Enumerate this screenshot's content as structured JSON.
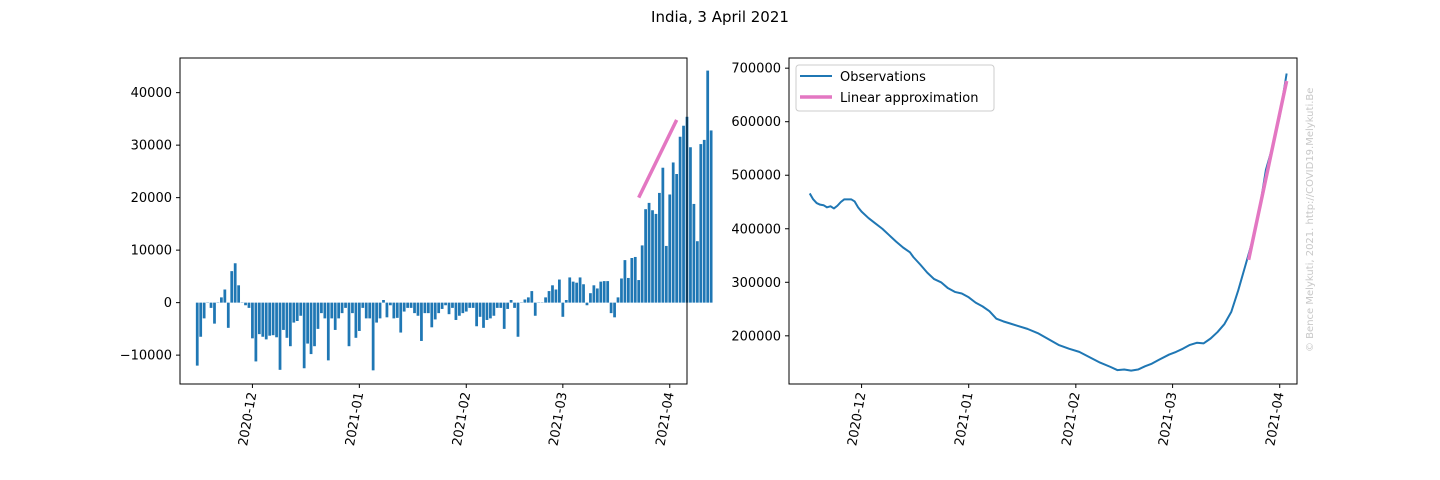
{
  "figure": {
    "title": "India, 3 April 2021",
    "watermark": "© Bence Melykuti, 2021. http://COVID19.Melykuti.Be"
  },
  "colors": {
    "bars": "#1f77b4",
    "observations": "#1f77b4",
    "linear_approximation": "#e377c2",
    "watermark": "#c8c8c8"
  },
  "chart_data": [
    {
      "type": "bar",
      "x_type": "date",
      "x_ticks": [
        "2020-12",
        "2021-01",
        "2021-02",
        "2021-03",
        "2021-04"
      ],
      "x_tick_dates": [
        "2020-12-01",
        "2021-01-01",
        "2021-02-01",
        "2021-03-01",
        "2021-04-01"
      ],
      "xlim": [
        "2020-11-10",
        "2021-04-06"
      ],
      "ylim": [
        -15500,
        46600
      ],
      "y_ticks": [
        -10000,
        0,
        10000,
        20000,
        30000,
        40000
      ],
      "y_tick_labels": [
        "−10000",
        "0",
        "10000",
        "20000",
        "30000",
        "40000"
      ],
      "grid": false,
      "series": [
        {
          "type": "bar",
          "start_date": "2020-11-15",
          "values": [
            -12000,
            -6500,
            -3000,
            0,
            -1000,
            -4000,
            0,
            1000,
            2500,
            -4800,
            6000,
            7500,
            3300,
            0,
            -500,
            -1000,
            -6800,
            -11200,
            -6000,
            -6500,
            -7000,
            -6300,
            -6200,
            -6600,
            -12800,
            -5200,
            -6700,
            -8300,
            -3800,
            -3500,
            -2500,
            -12500,
            -7800,
            -9800,
            -8300,
            -5000,
            -2000,
            -3000,
            -11000,
            -3000,
            -5200,
            -3000,
            -2000,
            -1000,
            -8300,
            -2000,
            -6700,
            -5400,
            -1000,
            -3000,
            -3000,
            -12900,
            -3800,
            -3000,
            500,
            -2800,
            -500,
            -3000,
            -2900,
            -5700,
            -1700,
            -1000,
            -1000,
            -2000,
            -2500,
            -7300,
            -2000,
            -2000,
            -4700,
            -3200,
            -2000,
            -1200,
            -500,
            -2200,
            -1000,
            -3300,
            -2500,
            -2000,
            -1700,
            -1000,
            -1000,
            -4500,
            -2700,
            -4800,
            -3300,
            -3000,
            -2500,
            -1000,
            -1000,
            -5000,
            -1200,
            500,
            -1000,
            -6500,
            0,
            600,
            1000,
            2200,
            -2500,
            0,
            0,
            1000,
            2200,
            3300,
            2500,
            4400,
            -2700,
            500,
            4800,
            4000,
            3800,
            4800,
            3500,
            -500,
            1800,
            3300,
            2700,
            4000,
            4100,
            4100,
            -2000,
            -2800,
            1000,
            4600,
            8100,
            4700,
            8500,
            8700,
            4300,
            10900,
            17800,
            19000,
            17600,
            16900,
            20900,
            25700,
            10800,
            20600,
            26700,
            24500,
            31600,
            33700,
            35400,
            29600,
            18800,
            11700,
            30200,
            31000,
            44200,
            32800
          ]
        },
        {
          "type": "line",
          "name": "Linear approximation",
          "points": [
            [
              "2021-03-23",
              20000
            ],
            [
              "2021-04-03",
              34800
            ]
          ]
        }
      ]
    },
    {
      "type": "line",
      "x_type": "date",
      "x_ticks": [
        "2020-12",
        "2021-01",
        "2021-02",
        "2021-03",
        "2021-04"
      ],
      "x_tick_dates": [
        "2020-12-01",
        "2021-01-01",
        "2021-02-01",
        "2021-03-01",
        "2021-04-01"
      ],
      "xlim": [
        "2020-11-10",
        "2021-04-06"
      ],
      "ylim": [
        110000,
        719000
      ],
      "y_ticks": [
        200000,
        300000,
        400000,
        500000,
        600000,
        700000
      ],
      "y_tick_labels": [
        "200000",
        "300000",
        "400000",
        "500000",
        "600000",
        "700000"
      ],
      "grid": false,
      "legend": "top-left",
      "series": [
        {
          "name": "Observations",
          "points": [
            [
              "2020-11-16",
              466000
            ],
            [
              "2020-11-17",
              455000
            ],
            [
              "2020-11-18",
              448000
            ],
            [
              "2020-11-19",
              445000
            ],
            [
              "2020-11-20",
              444000
            ],
            [
              "2020-11-21",
              440000
            ],
            [
              "2020-11-22",
              442000
            ],
            [
              "2020-11-23",
              438000
            ],
            [
              "2020-11-24",
              443000
            ],
            [
              "2020-11-25",
              450000
            ],
            [
              "2020-11-26",
              455000
            ],
            [
              "2020-11-27",
              455000
            ],
            [
              "2020-11-28",
              455000
            ],
            [
              "2020-11-29",
              451000
            ],
            [
              "2020-11-30",
              440000
            ],
            [
              "2020-12-01",
              432000
            ],
            [
              "2020-12-03",
              420000
            ],
            [
              "2020-12-05",
              410000
            ],
            [
              "2020-12-07",
              400000
            ],
            [
              "2020-12-09",
              388000
            ],
            [
              "2020-12-11",
              376000
            ],
            [
              "2020-12-13",
              365000
            ],
            [
              "2020-12-15",
              356000
            ],
            [
              "2020-12-16",
              347000
            ],
            [
              "2020-12-18",
              333000
            ],
            [
              "2020-12-20",
              318000
            ],
            [
              "2020-12-22",
              306000
            ],
            [
              "2020-12-24",
              300000
            ],
            [
              "2020-12-26",
              289000
            ],
            [
              "2020-12-28",
              282000
            ],
            [
              "2020-12-30",
              279000
            ],
            [
              "2021-01-01",
              272000
            ],
            [
              "2021-01-03",
              262000
            ],
            [
              "2021-01-05",
              255000
            ],
            [
              "2021-01-07",
              246000
            ],
            [
              "2021-01-09",
              232000
            ],
            [
              "2021-01-11",
              227000
            ],
            [
              "2021-01-13",
              223000
            ],
            [
              "2021-01-15",
              219000
            ],
            [
              "2021-01-18",
              213000
            ],
            [
              "2021-01-21",
              205000
            ],
            [
              "2021-01-24",
              194000
            ],
            [
              "2021-01-27",
              183000
            ],
            [
              "2021-01-30",
              176000
            ],
            [
              "2021-02-02",
              170000
            ],
            [
              "2021-02-05",
              160000
            ],
            [
              "2021-02-08",
              150000
            ],
            [
              "2021-02-11",
              142000
            ],
            [
              "2021-02-13",
              136000
            ],
            [
              "2021-02-15",
              137000
            ],
            [
              "2021-02-17",
              135000
            ],
            [
              "2021-02-19",
              137000
            ],
            [
              "2021-02-21",
              143000
            ],
            [
              "2021-02-23",
              148000
            ],
            [
              "2021-02-25",
              155000
            ],
            [
              "2021-02-28",
              165000
            ],
            [
              "2021-03-02",
              170000
            ],
            [
              "2021-03-04",
              176000
            ],
            [
              "2021-03-06",
              183000
            ],
            [
              "2021-03-08",
              187000
            ],
            [
              "2021-03-10",
              186000
            ],
            [
              "2021-03-12",
              195000
            ],
            [
              "2021-03-14",
              207000
            ],
            [
              "2021-03-16",
              222000
            ],
            [
              "2021-03-18",
              245000
            ],
            [
              "2021-03-20",
              285000
            ],
            [
              "2021-03-22",
              330000
            ],
            [
              "2021-03-24",
              375000
            ],
            [
              "2021-03-26",
              430000
            ],
            [
              "2021-03-28",
              510000
            ],
            [
              "2021-03-30",
              555000
            ],
            [
              "2021-04-01",
              610000
            ],
            [
              "2021-04-03",
              690000
            ]
          ]
        },
        {
          "name": "Linear approximation",
          "points": [
            [
              "2021-03-23",
              342000
            ],
            [
              "2021-04-03",
              676000
            ]
          ]
        }
      ]
    }
  ]
}
